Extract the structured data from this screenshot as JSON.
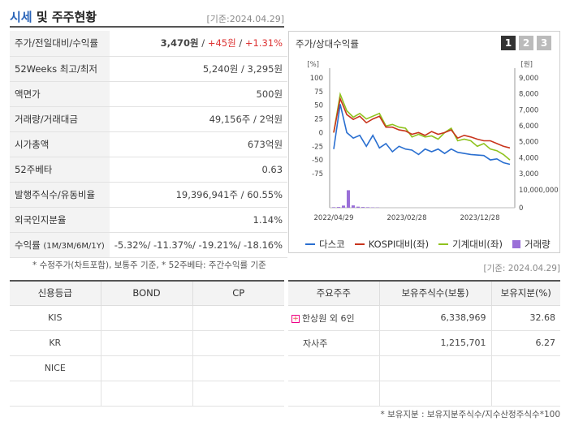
{
  "header": {
    "title_a": "시세",
    "title_b": " 및 주주현황",
    "date": "[기준:2024.04.29]"
  },
  "info": [
    {
      "label": "주가/전일대비/수익률"
    },
    {
      "label": "52Weeks 최고/최저",
      "value": "5,240원 / 3,295원"
    },
    {
      "label": "액면가",
      "value": "500원"
    },
    {
      "label": "거래량/거래대금",
      "value": "49,156주 / 2억원"
    },
    {
      "label": "시가총액",
      "value": "673억원"
    },
    {
      "label": "52주베타",
      "value": "0.63"
    },
    {
      "label": "발행주식수/유동비율",
      "value": "19,396,941주 / 60.55%"
    },
    {
      "label": "외국인지분율",
      "value": "1.14%"
    },
    {
      "label": "수익률",
      "label_small": "(1M/3M/6M/1Y)"
    }
  ],
  "price": {
    "close": "3,470원",
    "sep": " / ",
    "change": "+45원",
    "rate": "+1.31%"
  },
  "returns": "-5.32%/ -11.37%/ -19.21%/ -18.16%",
  "note1": "* 수정주가(차트포함), 보통주 기준, * 52주베타: 주간수익률 기준",
  "chart_panel": {
    "title": "주가/상대수익률",
    "tabs": [
      "1",
      "2",
      "3"
    ]
  },
  "legend": [
    "다스코",
    "KOSPI대비(좌)",
    "기계대비(좌)",
    "거래량"
  ],
  "colors": {
    "stock": "#2a6fd0",
    "kospi": "#c8341c",
    "machine": "#8fc21e",
    "volume": "#9a6fd8"
  },
  "chart_data": {
    "type": "line",
    "left_unit": "[%]",
    "right_unit": "[원]",
    "left_ticks": [
      "100",
      "75",
      "50",
      "25",
      "0",
      "-25",
      "-50",
      "-75"
    ],
    "right_ticks": [
      "9,000",
      "8,000",
      "7,000",
      "6,000",
      "5,000",
      "4,000",
      "3,000"
    ],
    "volume_ticks": [
      "10,000,000",
      "0"
    ],
    "x_ticks": [
      "2022/04/29",
      "2023/02/28",
      "2023/12/28"
    ],
    "ylim_left": [
      -75,
      100
    ],
    "series": [
      {
        "name": "다스코",
        "values": [
          -30,
          52,
          0,
          -10,
          -5,
          -25,
          -5,
          -28,
          -20,
          -35,
          -25,
          -30,
          -32,
          -40,
          -30,
          -35,
          -30,
          -38,
          -30,
          -36,
          -38,
          -40,
          -41,
          -42,
          -50,
          -48,
          -55,
          -58
        ]
      },
      {
        "name": "KOSPI대비(좌)",
        "values": [
          0,
          62,
          33,
          24,
          30,
          18,
          25,
          30,
          10,
          10,
          5,
          3,
          -3,
          0,
          -5,
          2,
          -3,
          0,
          5,
          -10,
          -5,
          -8,
          -12,
          -15,
          -15,
          -20,
          -25,
          -28
        ]
      },
      {
        "name": "기계대비(좌)",
        "values": [
          0,
          70,
          40,
          28,
          35,
          25,
          30,
          35,
          12,
          15,
          10,
          8,
          -8,
          -3,
          -8,
          -6,
          -12,
          0,
          8,
          -15,
          -12,
          -15,
          -25,
          -20,
          -30,
          -33,
          -40,
          -50
        ]
      },
      {
        "name": "거래량",
        "values": [
          300000,
          400000,
          1200000,
          9800000,
          1300000,
          600000,
          400000,
          300000,
          200000,
          150000
        ]
      }
    ]
  },
  "credit": {
    "headers": [
      "신용등급",
      "BOND",
      "CP"
    ],
    "rows": [
      [
        "KIS",
        "",
        ""
      ],
      [
        "KR",
        "",
        ""
      ],
      [
        "NICE",
        "",
        ""
      ],
      [
        "",
        "",
        ""
      ]
    ]
  },
  "date2": "[기준: 2024.04.29]",
  "owners": {
    "headers": [
      "주요주주",
      "보유주식수(보통)",
      "보유지분(%)"
    ],
    "rows": [
      [
        "한상원 외 6인",
        "6,338,969",
        "32.68"
      ],
      [
        "자사주",
        "1,215,701",
        "6.27"
      ],
      [
        "",
        "",
        ""
      ],
      [
        "",
        "",
        ""
      ]
    ],
    "plus_sign": "+"
  },
  "note2": "* 보유지분 : 보유지분주식수/지수산정주식수*100"
}
